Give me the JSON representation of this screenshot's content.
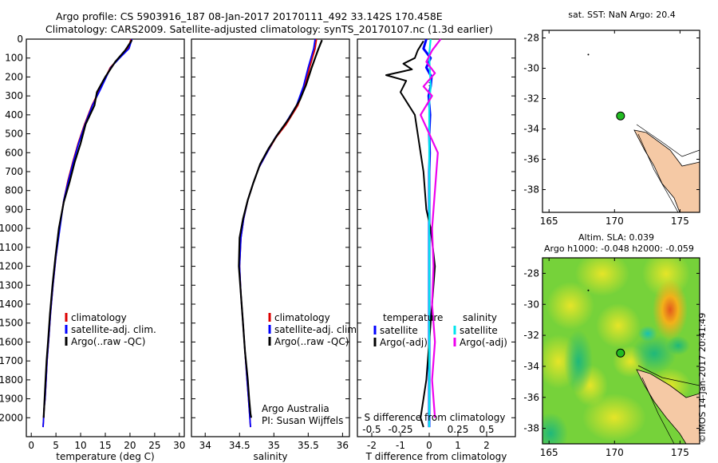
{
  "header": {
    "line1": "Argo profile: CS 5903916_187 08-Jan-2017 20170111_492 33.142S 170.458E",
    "line2": "Climatology: CARS2009. Satellite-adjusted climatology: synTS_20170107.nc (1.3d earlier)"
  },
  "colors": {
    "climatology": "#dd0000",
    "satellite": "#0000ff",
    "argo": "#000000",
    "s_satellite": "#00e5ee",
    "s_argo": "#ee00ee",
    "land": "#f5c9a5"
  },
  "stamp": "©IMOS 14-Jan-2017 20:41:49",
  "chart_data": [
    {
      "type": "line",
      "name": "temperature",
      "xlabel": "temperature (deg C)",
      "ylabel": "",
      "xlim": [
        -1,
        31
      ],
      "ylim": [
        2100,
        0
      ],
      "xticks": [
        0,
        5,
        10,
        15,
        20,
        25,
        30
      ],
      "xtick_labels": [
        "0",
        "5",
        "10",
        "15",
        "20",
        "25",
        "30"
      ],
      "yticks": [
        0,
        100,
        200,
        300,
        400,
        500,
        600,
        700,
        800,
        900,
        1000,
        1100,
        1200,
        1300,
        1400,
        1500,
        1600,
        1700,
        1800,
        1900,
        2000
      ],
      "ytick_labels": [
        "0",
        "100",
        "200",
        "300",
        "400",
        "500",
        "600",
        "700",
        "800",
        "900",
        "1000",
        "1100",
        "1200",
        "1300",
        "1400",
        "1500",
        "1600",
        "1700",
        "1800",
        "1900",
        "2000"
      ],
      "legend": [
        "climatology",
        "satellite-adj. clim.",
        "Argo(..raw -QC)"
      ],
      "series": [
        {
          "name": "climatology",
          "x": [
            20.2,
            19.6,
            17.8,
            16.0,
            14.2,
            12.3,
            10.8,
            9.5,
            8.4,
            7.4,
            6.6,
            5.7,
            5.0,
            4.4,
            3.9,
            3.5,
            3.2,
            3.0,
            2.8,
            2.6,
            2.5,
            2.4
          ],
          "y": [
            0,
            50,
            100,
            150,
            250,
            350,
            450,
            550,
            650,
            750,
            850,
            1000,
            1150,
            1300,
            1450,
            1600,
            1700,
            1800,
            1900,
            1950,
            2000,
            2050
          ]
        },
        {
          "name": "satellite-adj. clim.",
          "x": [
            20.4,
            19.8,
            17.9,
            16.1,
            14.3,
            12.4,
            10.9,
            9.6,
            8.5,
            7.5,
            6.6,
            5.8,
            5.0,
            4.4,
            3.9,
            3.5,
            3.2,
            3.0,
            2.8,
            2.6,
            2.5,
            2.4
          ],
          "y": [
            0,
            50,
            100,
            150,
            250,
            350,
            450,
            550,
            650,
            750,
            850,
            1000,
            1150,
            1300,
            1450,
            1600,
            1700,
            1800,
            1900,
            1950,
            2000,
            2050
          ]
        },
        {
          "name": "Argo(..raw -QC)",
          "x": [
            20.4,
            19.0,
            17.0,
            15.0,
            13.3,
            12.8,
            11.0,
            10.0,
            8.8,
            7.8,
            6.6,
            5.6,
            4.9,
            4.3,
            3.8,
            3.4,
            3.1,
            2.9,
            2.7,
            2.6,
            2.5
          ],
          "y": [
            5,
            60,
            120,
            200,
            280,
            350,
            450,
            550,
            650,
            750,
            860,
            1000,
            1150,
            1300,
            1450,
            1600,
            1700,
            1800,
            1900,
            1950,
            2000
          ]
        }
      ]
    },
    {
      "type": "line",
      "name": "salinity",
      "xlabel": "salinity",
      "xlim": [
        33.8,
        36.1
      ],
      "ylim": [
        2100,
        0
      ],
      "xticks": [
        34,
        34.5,
        35,
        35.5,
        36
      ],
      "xtick_labels": [
        "34",
        "34.5",
        "35",
        "35.5",
        "36"
      ],
      "legend": [
        "climatology",
        "satellite-adj. clim.",
        "Argo(..raw -QC)"
      ],
      "annotation": [
        "Argo Australia",
        "PI: Susan Wijffels"
      ],
      "series": [
        {
          "name": "climatology",
          "x": [
            35.62,
            35.6,
            35.52,
            35.45,
            35.35,
            35.18,
            35.03,
            34.9,
            34.78,
            34.7,
            34.62,
            34.56,
            34.52,
            34.5,
            34.52,
            34.55,
            34.58,
            34.61,
            34.63,
            34.65,
            34.66
          ],
          "y": [
            0,
            50,
            150,
            250,
            350,
            450,
            520,
            600,
            680,
            760,
            850,
            950,
            1050,
            1200,
            1350,
            1500,
            1650,
            1800,
            1900,
            2000,
            2050
          ]
        },
        {
          "name": "satellite-adj. clim.",
          "x": [
            35.6,
            35.58,
            35.5,
            35.43,
            35.33,
            35.16,
            35.02,
            34.9,
            34.78,
            34.7,
            34.62,
            34.56,
            34.52,
            34.5,
            34.52,
            34.55,
            34.58,
            34.61,
            34.63,
            34.65,
            34.66
          ],
          "y": [
            0,
            50,
            150,
            250,
            350,
            450,
            520,
            600,
            680,
            760,
            850,
            950,
            1050,
            1200,
            1350,
            1500,
            1650,
            1800,
            1900,
            2000,
            2050
          ]
        },
        {
          "name": "Argo(..raw -QC)",
          "x": [
            35.7,
            35.64,
            35.55,
            35.47,
            35.38,
            35.22,
            35.06,
            34.92,
            34.8,
            34.7,
            34.62,
            34.55,
            34.5,
            34.49,
            34.52,
            34.55,
            34.58,
            34.62,
            34.64,
            34.66,
            34.67
          ],
          "y": [
            5,
            60,
            150,
            240,
            320,
            420,
            500,
            580,
            660,
            760,
            850,
            950,
            1050,
            1200,
            1350,
            1500,
            1650,
            1800,
            1900,
            1980,
            2000
          ]
        }
      ]
    },
    {
      "type": "line",
      "name": "difference from climatology",
      "xlabel": "T difference from climatology",
      "xlabel_top": "S difference from climatology",
      "xlim": [
        -2.5,
        3
      ],
      "ylim": [
        2100,
        0
      ],
      "xticks": [
        -2,
        -1,
        0,
        1,
        2
      ],
      "xtick_labels": [
        "-2",
        "-1",
        "0",
        "1",
        "2"
      ],
      "s_xticks": [
        -2,
        -1,
        1,
        2
      ],
      "s_xtick_labels": [
        "-0.5",
        "-0.25",
        "0.25",
        "0.5"
      ],
      "legend": [
        "temperature",
        "satellite",
        "Argo(-adj)",
        "salinity",
        "satellite",
        "Argo(-adj)"
      ],
      "series": [
        {
          "name": "satellite",
          "x": [
            -0.1,
            -0.2,
            0.05,
            -0.1,
            0.08,
            0.05,
            -0.02,
            0.03,
            0.0,
            0.02,
            0.0,
            0.0,
            0.0,
            0.0,
            0.0,
            0.0,
            0.0,
            0.0,
            0.0,
            0.0
          ],
          "y": [
            0,
            50,
            100,
            150,
            200,
            250,
            300,
            400,
            500,
            600,
            700,
            800,
            900,
            1000,
            1200,
            1400,
            1600,
            1800,
            1950,
            2050
          ]
        },
        {
          "name": "Argo(-adj)",
          "x": [
            -0.2,
            -0.4,
            -0.5,
            -0.9,
            -0.6,
            -1.5,
            -0.8,
            -1.0,
            -0.5,
            -0.4,
            -0.3,
            -0.2,
            -0.15,
            -0.1,
            0.05,
            0.2,
            0.1,
            0.0,
            -0.1,
            -0.2,
            -0.3,
            -0.2
          ],
          "y": [
            10,
            60,
            100,
            130,
            160,
            190,
            220,
            280,
            400,
            500,
            600,
            700,
            800,
            900,
            1000,
            1200,
            1400,
            1600,
            1800,
            1900,
            2000,
            2050
          ]
        },
        {
          "name": "satellite",
          "x": [
            0.05,
            0.0,
            0.02,
            0.05,
            0.0,
            0.0,
            0.0,
            0.0,
            0.0,
            0.0,
            0.0,
            0.0,
            0.0,
            0.0
          ],
          "y": [
            0,
            80,
            150,
            250,
            350,
            500,
            700,
            900,
            1100,
            1300,
            1500,
            1700,
            1900,
            2050
          ]
        },
        {
          "name": "Argo(-adj)",
          "x": [
            0.4,
            0.1,
            -0.1,
            0.2,
            -0.2,
            0.1,
            -0.3,
            0.0,
            0.3,
            0.2,
            0.1,
            0.15,
            0.1,
            0.2,
            0.1,
            0.2
          ],
          "y": [
            0,
            60,
            120,
            180,
            250,
            300,
            400,
            500,
            600,
            800,
            1000,
            1200,
            1400,
            1600,
            1800,
            2000
          ]
        }
      ]
    },
    {
      "type": "scatter",
      "name": "sst-map",
      "title": "sat. SST: NaN Argo: 20.4",
      "xlim": [
        164.5,
        176.5
      ],
      "ylim": [
        -39.5,
        -27.5
      ],
      "xticks": [
        165,
        170,
        175
      ],
      "xtick_labels": [
        "165",
        "170",
        "175"
      ],
      "yticks": [
        -28,
        -30,
        -32,
        -34,
        -36,
        -38
      ],
      "ytick_labels": [
        "-28",
        "-30",
        "-32",
        "-34",
        "-36",
        "-38"
      ],
      "points": [
        {
          "lon": 170.458,
          "lat": -33.142
        }
      ]
    },
    {
      "type": "heatmap",
      "name": "sla-map",
      "title": [
        "Altim. SLA: 0.039",
        "Argo h1000: -0.048 h2000: -0.059"
      ],
      "xlim": [
        164.5,
        176.5
      ],
      "ylim": [
        -39,
        -27
      ],
      "xticks": [
        165,
        170,
        175
      ],
      "xtick_labels": [
        "165",
        "170",
        "175"
      ],
      "yticks": [
        -28,
        -30,
        -32,
        -34,
        -36,
        -38
      ],
      "ytick_labels": [
        "-28",
        "-30",
        "-32",
        "-34",
        "-36",
        "-38"
      ],
      "points": [
        {
          "lon": 170.458,
          "lat": -33.142
        }
      ]
    }
  ]
}
